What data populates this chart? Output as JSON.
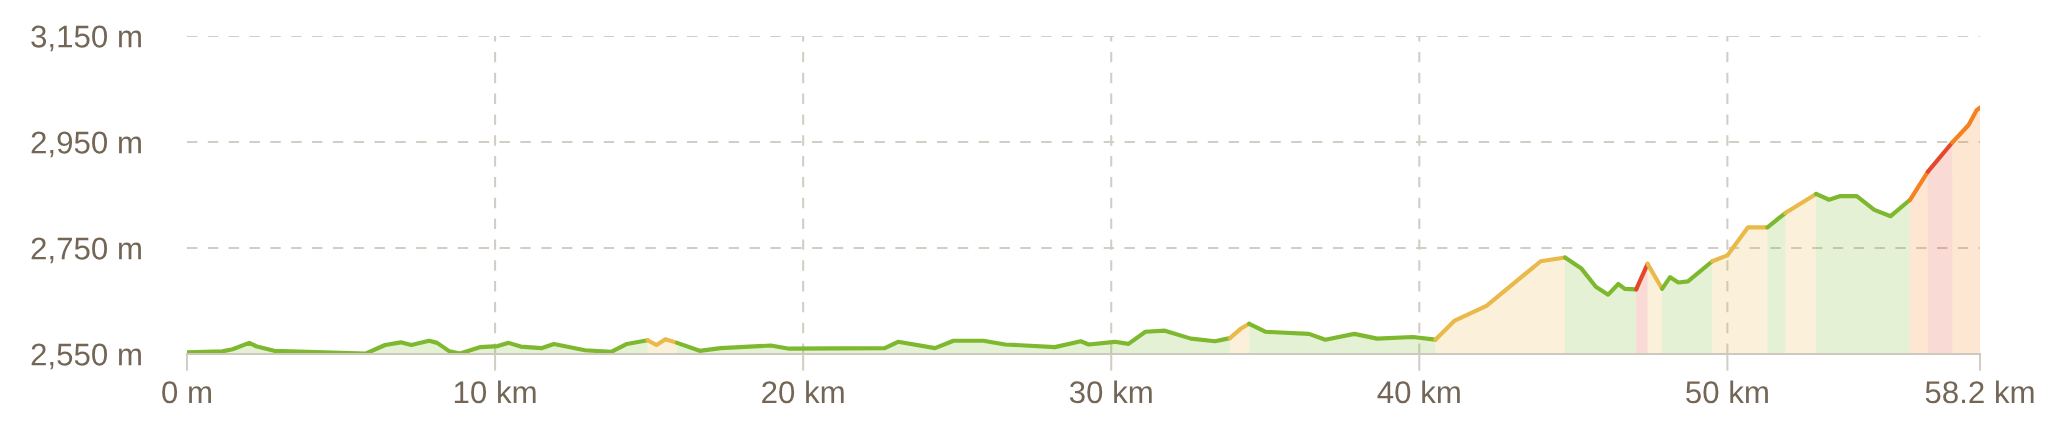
{
  "chart_data": {
    "type": "area",
    "xlim": [
      0,
      58.2
    ],
    "ylim": [
      2550,
      3150
    ],
    "xticks": [
      {
        "value": 0,
        "label": "0 m"
      },
      {
        "value": 10,
        "label": "10 km"
      },
      {
        "value": 20,
        "label": "20 km"
      },
      {
        "value": 30,
        "label": "30 km"
      },
      {
        "value": 40,
        "label": "40 km"
      },
      {
        "value": 50,
        "label": "50 km"
      },
      {
        "value": 58.2,
        "label": "58.2 km"
      }
    ],
    "yticks": [
      {
        "value": 2550,
        "label": "2,550 m"
      },
      {
        "value": 2750,
        "label": "2,750 m"
      },
      {
        "value": 2950,
        "label": "2,950 m"
      },
      {
        "value": 3150,
        "label": "3,150 m"
      }
    ],
    "grid": true,
    "line_style": "solid",
    "series": [
      {
        "color": "#7db82e",
        "x": [
          0,
          1.14,
          1.48,
          2.02,
          2.27,
          2.83,
          5.81,
          6.43,
          6.94,
          7.28,
          7.86,
          8.12,
          8.52,
          8.86,
          9.53,
          10.09,
          10.44,
          10.83,
          11.5,
          11.91,
          12.92,
          13.77,
          14.28,
          14.95
        ],
        "values": [
          2553,
          2555,
          2559,
          2571,
          2564,
          2556,
          2551,
          2567,
          2572,
          2567,
          2575,
          2571,
          2555,
          2551,
          2563,
          2565,
          2571,
          2564,
          2561,
          2569,
          2557,
          2554,
          2569,
          2576
        ]
      },
      {
        "color": "#e9b94a",
        "x": [
          14.95,
          15.24,
          15.53,
          15.91
        ],
        "values": [
          2576,
          2567,
          2578,
          2571
        ]
      },
      {
        "color": "#7db82e",
        "x": [
          15.91,
          16.64,
          17.32,
          18.95,
          19.55,
          22.65,
          23.08,
          24.28,
          24.88,
          25.85,
          26.56,
          28.17,
          29.01,
          29.27,
          30.11,
          30.56,
          31.11,
          31.74,
          32.59,
          33.37,
          33.85
        ],
        "values": [
          2571,
          2556,
          2561,
          2566,
          2560,
          2561,
          2573,
          2561,
          2575,
          2575,
          2568,
          2563,
          2574,
          2568,
          2573,
          2569,
          2592,
          2594,
          2579,
          2574,
          2580
        ]
      },
      {
        "color": "#e9b94a",
        "x": [
          33.85,
          34.21,
          34.48
        ],
        "values": [
          2580,
          2598,
          2607
        ]
      },
      {
        "color": "#7db82e",
        "x": [
          34.48,
          35.0,
          36.42,
          36.95,
          37.89,
          38.63,
          39.79,
          40.52
        ],
        "values": [
          2607,
          2592,
          2588,
          2577,
          2588,
          2579,
          2582,
          2577
        ]
      },
      {
        "color": "#e9b94a",
        "x": [
          40.52,
          41.15,
          42.18,
          43.94,
          44.73
        ],
        "values": [
          2577,
          2613,
          2641,
          2725,
          2732
        ]
      },
      {
        "color": "#7db82e",
        "x": [
          44.73,
          45.25,
          45.73,
          46.13,
          46.46,
          46.67,
          47.04
        ],
        "values": [
          2732,
          2712,
          2677,
          2662,
          2682,
          2673,
          2672
        ]
      },
      {
        "color": "#e5472b",
        "x": [
          47.04,
          47.41
        ],
        "values": [
          2672,
          2720
        ]
      },
      {
        "color": "#e9b94a",
        "x": [
          47.41,
          47.88
        ],
        "values": [
          2720,
          2673
        ]
      },
      {
        "color": "#7db82e",
        "x": [
          47.88,
          48.14,
          48.41,
          48.72,
          49.51
        ],
        "values": [
          2673,
          2695,
          2685,
          2687,
          2725
        ]
      },
      {
        "color": "#e9b94a",
        "x": [
          49.51,
          50.0,
          50.67,
          51.3
        ],
        "values": [
          2725,
          2736,
          2789,
          2789
        ]
      },
      {
        "color": "#7db82e",
        "x": [
          51.3,
          51.88
        ],
        "values": [
          2789,
          2816
        ]
      },
      {
        "color": "#e9b94a",
        "x": [
          51.88,
          52.88
        ],
        "values": [
          2816,
          2852
        ]
      },
      {
        "color": "#7db82e",
        "x": [
          52.88,
          53.3,
          53.67,
          54.2,
          54.77,
          55.3,
          55.93
        ],
        "values": [
          2852,
          2841,
          2848,
          2848,
          2822,
          2810,
          2841
        ]
      },
      {
        "color": "#f5821e",
        "x": [
          55.93,
          56.51
        ],
        "values": [
          2841,
          2894
        ]
      },
      {
        "color": "#e5472b",
        "x": [
          56.51,
          57.3
        ],
        "values": [
          2894,
          2949
        ]
      },
      {
        "color": "#f5821e",
        "x": [
          57.3,
          57.83,
          58.09,
          58.2
        ],
        "values": [
          2949,
          2982,
          3010,
          3015
        ]
      }
    ]
  }
}
